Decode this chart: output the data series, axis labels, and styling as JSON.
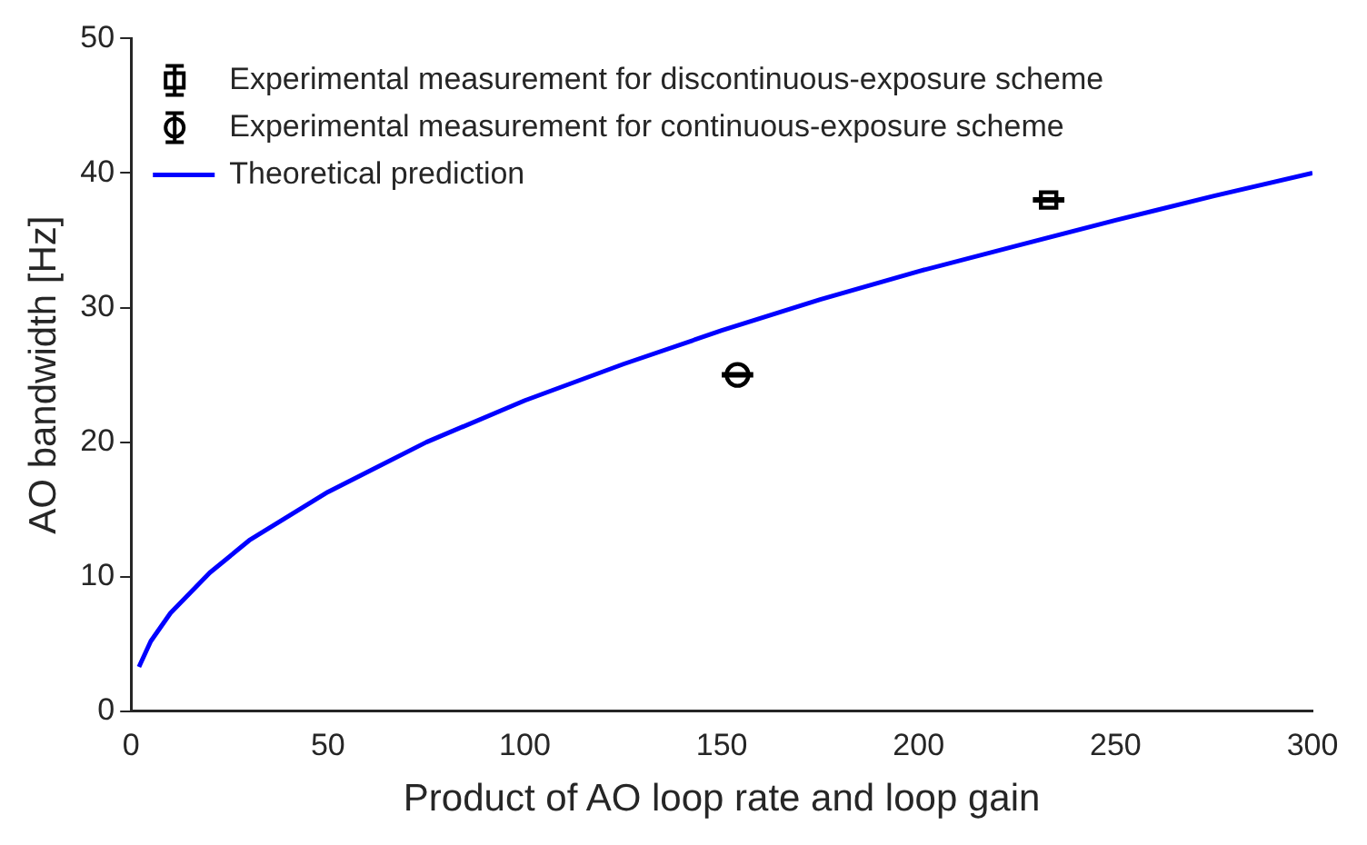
{
  "chart_data": {
    "type": "scatter",
    "xlabel": "Product of AO loop rate and loop gain",
    "ylabel": "AO bandwidth [Hz]",
    "xlim": [
      0,
      300
    ],
    "xticks": [
      0,
      50,
      100,
      150,
      200,
      250,
      300
    ],
    "ylim": [
      0,
      50
    ],
    "yticks": [
      0,
      10,
      20,
      30,
      40,
      50
    ],
    "grid": false,
    "legend": "top left",
    "series": [
      {
        "name": "Experimental measurement for discontinuous-exposure scheme",
        "color": "#000000",
        "marker": "square",
        "x": [
          233
        ],
        "values": [
          38
        ],
        "xerrors": [
          4
        ]
      },
      {
        "name": "Experimental measurement for continuous-exposure scheme",
        "color": "#000000",
        "marker": "circle",
        "x": [
          154
        ],
        "values": [
          25
        ],
        "xerrors": [
          4
        ]
      },
      {
        "name": "Theoretical prediction",
        "type": "line",
        "color": "#0000ff",
        "marker": "none",
        "x": [
          2,
          5,
          10,
          20,
          30,
          50,
          75,
          100,
          125,
          150,
          175,
          200,
          225,
          250,
          275,
          300
        ],
        "values": [
          3.3,
          5.2,
          7.3,
          10.3,
          12.7,
          16.3,
          20,
          23.1,
          25.8,
          28.3,
          30.6,
          32.7,
          34.6,
          36.5,
          38.3,
          40
        ]
      }
    ]
  }
}
